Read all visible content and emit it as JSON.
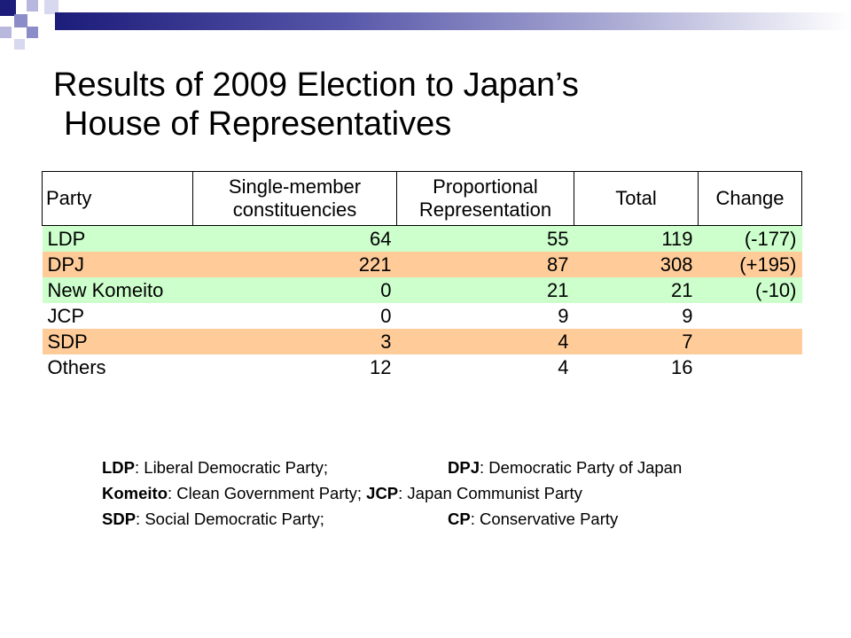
{
  "title": {
    "line1": "Results of 2009 Election to Japan’s",
    "line2": "House of Representatives"
  },
  "table": {
    "headers": {
      "party": "Party",
      "smc_line1": "Single-member",
      "smc_line2": "constituencies",
      "pr_line1": "Proportional",
      "pr_line2": "Representation",
      "total": "Total",
      "change": "Change"
    },
    "rows": [
      {
        "party": "LDP",
        "smc": "64",
        "pr": "55",
        "total": "119",
        "change": "(-177)",
        "color": "#ccffcc"
      },
      {
        "party": "DPJ",
        "smc": "221",
        "pr": "87",
        "total": "308",
        "change": "(+195)",
        "color": "#ffcc99"
      },
      {
        "party": "New Komeito",
        "smc": "0",
        "pr": "21",
        "total": "21",
        "change": "(-10)",
        "color": "#ccffcc"
      },
      {
        "party": "JCP",
        "smc": "0",
        "pr": "9",
        "total": "9",
        "change": "",
        "color": "#ffffff"
      },
      {
        "party": "SDP",
        "smc": "3",
        "pr": "4",
        "total": "7",
        "change": "",
        "color": "#ffcc99"
      },
      {
        "party": "Others",
        "smc": "12",
        "pr": "4",
        "total": "16",
        "change": "",
        "color": "#ffffff"
      }
    ]
  },
  "legend": {
    "r1a_abbr": "LDP",
    "r1a_text": ": Liberal Democratic Party;",
    "r1b_abbr": "DPJ",
    "r1b_text": ": Democratic Party of Japan",
    "r2a_abbr": "Komeito",
    "r2a_text": ": Clean Government Party;",
    "r2b_abbr": "JCP",
    "r2b_text": ": Japan Communist Party",
    "r3a_abbr": "SDP",
    "r3a_text": ": Social Democratic Party;",
    "r3b_abbr": "CP",
    "r3b_text": ": Conservative Party"
  }
}
